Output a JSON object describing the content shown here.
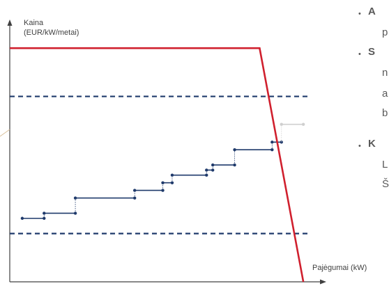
{
  "chart_data": {
    "type": "line",
    "ylabel_line1": "Kaina",
    "ylabel_line2": "(EUR/kW/metai)",
    "xlabel": "Pajėgumai (kW)",
    "upper_dashed_level": 0.73,
    "lower_dashed_level": 0.19,
    "demand_curve": [
      [
        0,
        0.92
      ],
      [
        0.8,
        0.92
      ],
      [
        0.94,
        0
      ]
    ],
    "supply_steps": [
      [
        0.04,
        0.25,
        0.11
      ],
      [
        0.11,
        0.27,
        0.21
      ],
      [
        0.21,
        0.33,
        0.4
      ],
      [
        0.4,
        0.36,
        0.49
      ],
      [
        0.49,
        0.39,
        0.52
      ],
      [
        0.52,
        0.42,
        0.63
      ],
      [
        0.63,
        0.44,
        0.65
      ],
      [
        0.65,
        0.46,
        0.72
      ],
      [
        0.72,
        0.52,
        0.84
      ],
      [
        0.84,
        0.55,
        0.87
      ]
    ],
    "excluded_step": [
      0.87,
      0.62,
      0.94
    ],
    "colors": {
      "demand": "#d0202e",
      "dashed": "#1f3a6b",
      "supply": "#1f3a6b",
      "excluded": "#cfcfcf",
      "axis": "#404040"
    }
  },
  "right_text": {
    "b1_bold": "A",
    "b1_line2": "p",
    "b2_bold": "S",
    "b2_line2": "n",
    "b2_line3": "a",
    "b2_line4": "b",
    "b3_bold": "K",
    "b3_line2": "L",
    "b3_line3": "Š"
  }
}
